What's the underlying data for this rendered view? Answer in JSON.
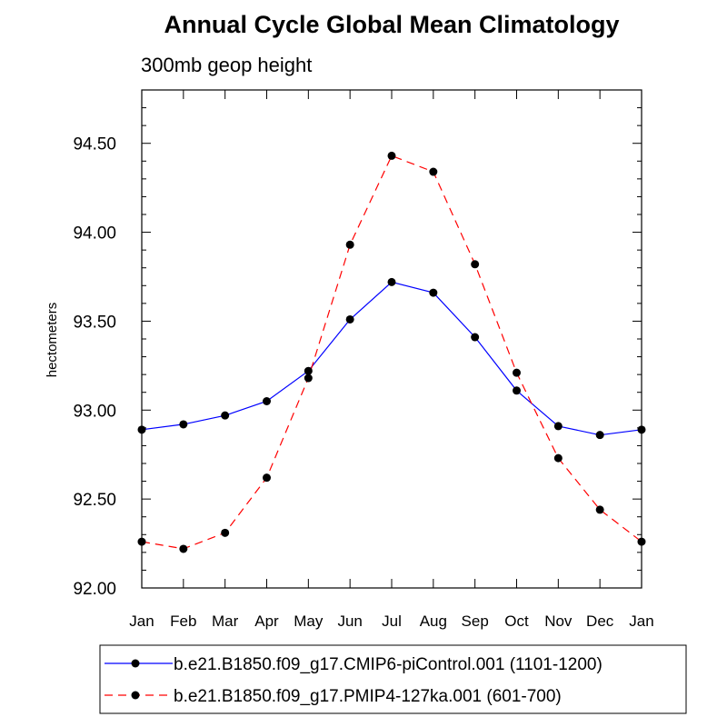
{
  "chart_data": {
    "type": "line",
    "title": "Annual Cycle Global Mean Climatology",
    "subtitle": "300mb geop height",
    "xlabel": "",
    "ylabel": "hectometers",
    "categories": [
      "Jan",
      "Feb",
      "Mar",
      "Apr",
      "May",
      "Jun",
      "Jul",
      "Aug",
      "Sep",
      "Oct",
      "Nov",
      "Dec",
      "Jan"
    ],
    "ylim": [
      92.0,
      94.8
    ],
    "yticks": [
      92.0,
      92.5,
      93.0,
      93.5,
      94.0,
      94.5
    ],
    "ytick_labels": [
      "92.00",
      "92.50",
      "93.00",
      "93.50",
      "94.00",
      "94.50"
    ],
    "grid": false,
    "legend_position": "bottom",
    "series": [
      {
        "name": "b.e21.B1850.f09_g17.CMIP6-piControl.001 (1101-1200)",
        "color": "#0000ff",
        "line_style": "solid",
        "marker": "filled-circle",
        "values": [
          92.89,
          92.92,
          92.97,
          93.05,
          93.22,
          93.51,
          93.72,
          93.66,
          93.41,
          93.11,
          92.91,
          92.86,
          92.89
        ]
      },
      {
        "name": "b.e21.B1850.f09_g17.PMIP4-127ka.001 (601-700)",
        "color": "#ff0000",
        "line_style": "dashed",
        "marker": "filled-circle",
        "values": [
          92.26,
          92.22,
          92.31,
          92.62,
          93.18,
          93.93,
          94.43,
          94.34,
          93.82,
          93.21,
          92.73,
          92.44,
          92.26
        ]
      }
    ]
  }
}
